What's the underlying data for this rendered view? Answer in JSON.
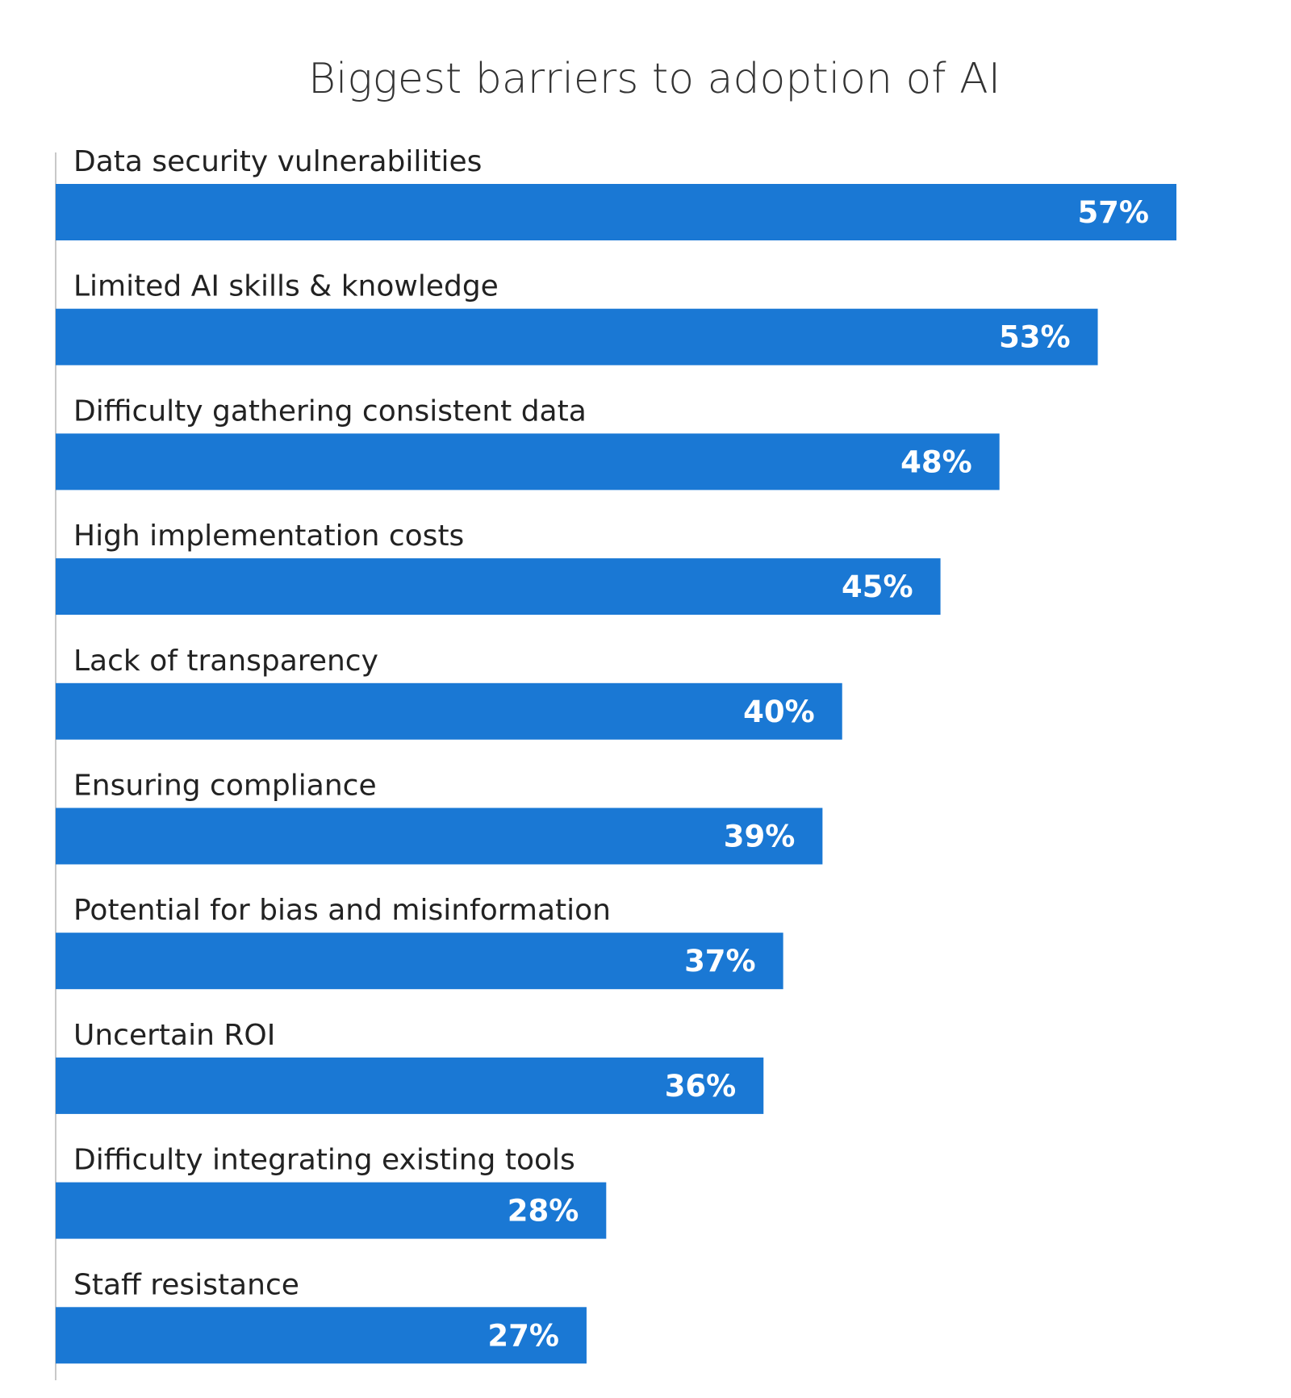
{
  "chart_data": {
    "type": "bar",
    "orientation": "horizontal",
    "title": "Biggest barriers to adoption of AI",
    "categories": [
      "Data security vulnerabilities",
      "Limited AI skills & knowledge",
      "Difficulty gathering consistent data",
      "High implementation costs",
      "Lack of transparency",
      "Ensuring compliance",
      "Potential for bias and misinformation",
      "Uncertain ROI",
      "Difficulty integrating existing tools",
      "Staff resistance"
    ],
    "values": [
      57,
      53,
      48,
      45,
      40,
      39,
      37,
      36,
      28,
      27
    ],
    "value_labels": [
      "57%",
      "53%",
      "48%",
      "45%",
      "40%",
      "39%",
      "37%",
      "36%",
      "28%",
      "27%"
    ],
    "unit": "%",
    "xlim": [
      0,
      57
    ],
    "grid": false,
    "legend": "none",
    "colors": {
      "bar": "#1a78d4",
      "axis": "#c8c8c8",
      "text": "#222222"
    }
  }
}
